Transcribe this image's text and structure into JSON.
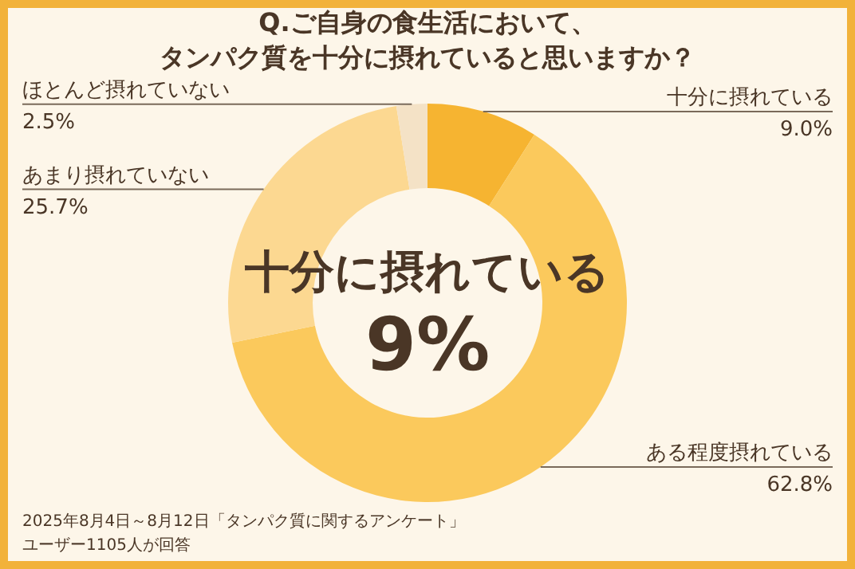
{
  "chart_data": {
    "type": "donut",
    "title": "Q.ご自身の食生活において、タンパク質を十分に摂れていると思いますか？",
    "categories": [
      "十分に摂れている",
      "ある程度摂れている",
      "あまり摂れていない",
      "ほとんど摂れていない"
    ],
    "values": [
      9.0,
      62.8,
      25.7,
      2.5
    ],
    "value_labels": [
      "9.0%",
      "62.8%",
      "25.7%",
      "2.5%"
    ],
    "colors": [
      "#f6b431",
      "#fbc95c",
      "#fcd891",
      "#f4e2c6"
    ],
    "annotations": [
      "十分に摂れている",
      "9%",
      "2025年8月4日～8月12日「タンパク質に関するアンケート」",
      "ユーザー1105人が回答"
    ],
    "legend": false
  }
}
